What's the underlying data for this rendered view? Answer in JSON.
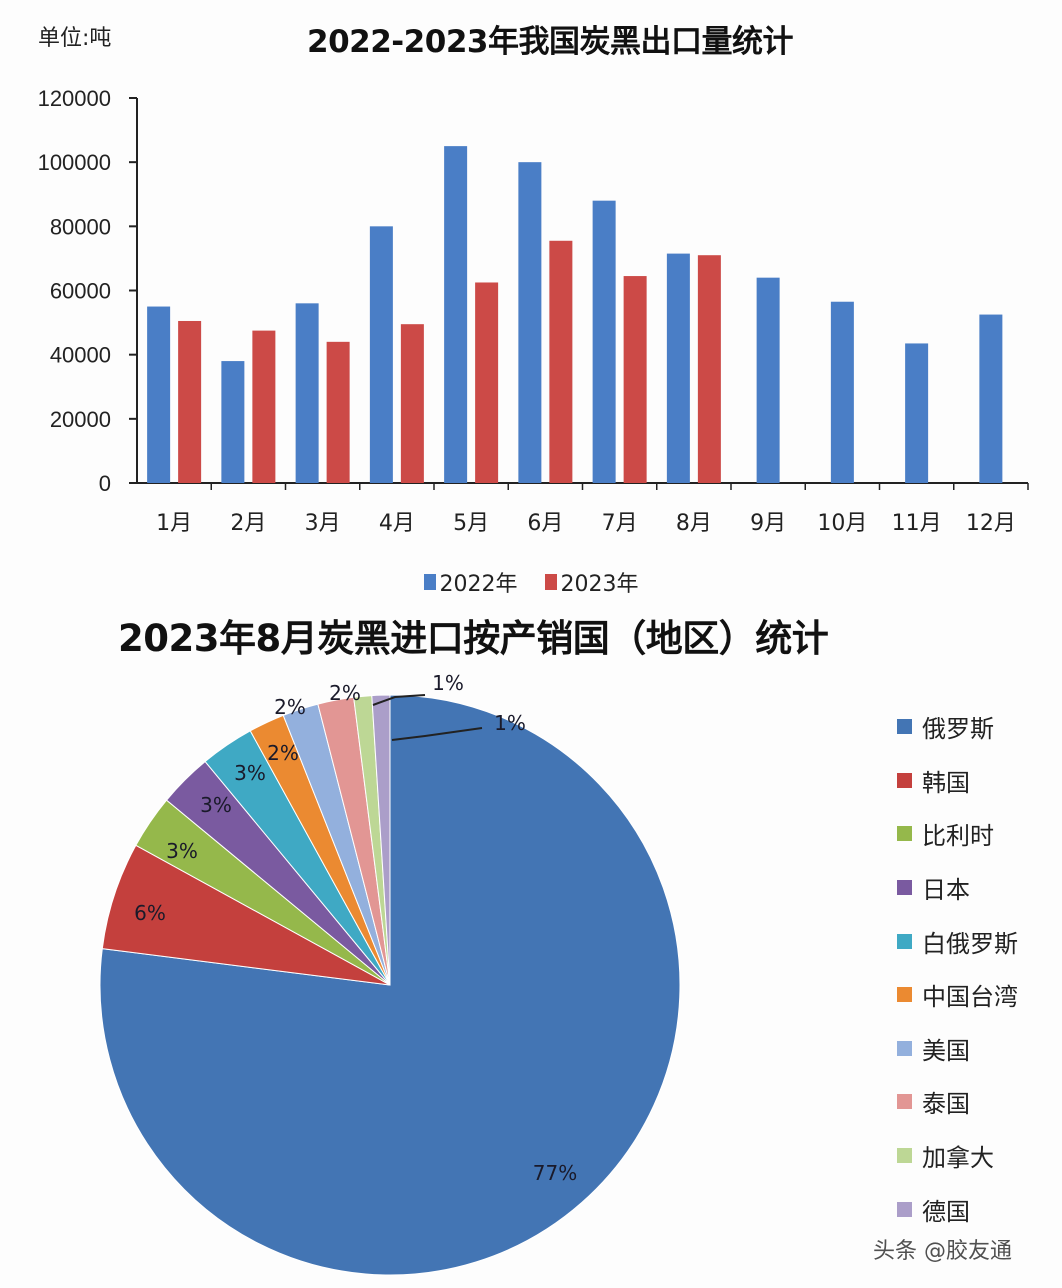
{
  "chart_data": [
    {
      "type": "bar",
      "title": "2022-2023年我国炭黑出口量统计",
      "unit_label": "单位:吨",
      "xlabel": "",
      "ylabel": "单位:吨",
      "ylim": [
        0,
        120000
      ],
      "yticks": [
        "0",
        "20000",
        "40000",
        "60000",
        "80000",
        "100000",
        "120000"
      ],
      "grid": false,
      "legend_position": "bottom",
      "categories": [
        "1月",
        "2月",
        "3月",
        "4月",
        "5月",
        "6月",
        "7月",
        "8月",
        "9月",
        "10月",
        "11月",
        "12月"
      ],
      "series": [
        {
          "name": "2022年",
          "color": "#4a7ec6",
          "values": [
            55000,
            38000,
            56000,
            80000,
            105000,
            100000,
            88000,
            71500,
            64000,
            56500,
            43500,
            52500
          ]
        },
        {
          "name": "2023年",
          "color": "#cc4a47",
          "values": [
            50500,
            47500,
            44000,
            49500,
            62500,
            75500,
            64500,
            71000,
            null,
            null,
            null,
            null
          ]
        }
      ]
    },
    {
      "type": "pie",
      "title": "2023年8月炭黑进口按产销国（地区）统计",
      "legend_position": "right",
      "categories": [
        "俄罗斯",
        "韩国",
        "比利时",
        "日本",
        "白俄罗斯",
        "中国台湾",
        "美国",
        "泰国",
        "加拿大",
        "德国"
      ],
      "values": [
        77,
        6,
        3,
        3,
        3,
        2,
        2,
        2,
        1,
        1
      ],
      "labels": [
        "77%",
        "6%",
        "3%",
        "3%",
        "3%",
        "2%",
        "2%",
        "2%",
        "1%",
        "1%"
      ],
      "colors": [
        "#4375b4",
        "#c4403d",
        "#95b84b",
        "#7a5aa0",
        "#3fa9c4",
        "#eb8a31",
        "#93b0dd",
        "#e29694",
        "#bdd795",
        "#ab9ec9"
      ]
    }
  ],
  "bar_chart": {
    "unit": "单位:吨",
    "title": "2022-2023年我国炭黑出口量统计",
    "legend": [
      {
        "label": "2022年",
        "color": "#4a7ec6"
      },
      {
        "label": "2023年",
        "color": "#cc4a47"
      }
    ]
  },
  "pie_chart": {
    "title": "2023年8月炭黑进口按产销国（地区）统计",
    "legend": [
      {
        "label": "俄罗斯",
        "color": "#4375b4"
      },
      {
        "label": "韩国",
        "color": "#c4403d"
      },
      {
        "label": "比利时",
        "color": "#95b84b"
      },
      {
        "label": "日本",
        "color": "#7a5aa0"
      },
      {
        "label": "白俄罗斯",
        "color": "#3fa9c4"
      },
      {
        "label": "中国台湾",
        "color": "#eb8a31"
      },
      {
        "label": "美国",
        "color": "#93b0dd"
      },
      {
        "label": "泰国",
        "color": "#e29694"
      },
      {
        "label": "加拿大",
        "color": "#bdd795"
      },
      {
        "label": "德国",
        "color": "#ab9ec9"
      }
    ]
  },
  "watermark": "头条 @胶友通"
}
